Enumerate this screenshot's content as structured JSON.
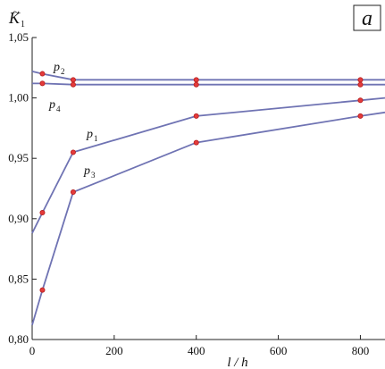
{
  "chart_data": {
    "type": "line",
    "panel_label": "a",
    "ylabel_main": "K",
    "ylabel_tilde": "~",
    "ylabel_sub": "1",
    "xlabel": "l / h",
    "xlim": [
      0,
      860
    ],
    "ylim": [
      0.8,
      1.05
    ],
    "xticks": [
      0,
      200,
      400,
      600,
      800
    ],
    "xtick_labels": [
      "0",
      "200",
      "400",
      "600",
      "800"
    ],
    "yticks": [
      0.8,
      0.85,
      0.9,
      0.95,
      1.0,
      1.05
    ],
    "ytick_labels": [
      "0,80",
      "0,85",
      "0,90",
      "0,95",
      "1,00",
      "1,05"
    ],
    "grid": false,
    "series": [
      {
        "name_base": "p",
        "name_sub": "2",
        "x": [
          0,
          25,
          100,
          400,
          800,
          860
        ],
        "y": [
          1.022,
          1.02,
          1.015,
          1.015,
          1.015,
          1.015
        ],
        "marker_x": [
          25,
          100,
          400,
          800
        ],
        "color": "#6f73b3",
        "marker_color": "#e43b3b"
      },
      {
        "name_base": "p",
        "name_sub": "4",
        "x": [
          0,
          25,
          100,
          400,
          800,
          860
        ],
        "y": [
          1.012,
          1.012,
          1.011,
          1.011,
          1.011,
          1.011
        ],
        "marker_x": [
          25,
          100,
          400,
          800
        ],
        "color": "#6f73b3",
        "marker_color": "#e43b3b"
      },
      {
        "name_base": "p",
        "name_sub": "1",
        "x": [
          0,
          25,
          100,
          400,
          800,
          860
        ],
        "y": [
          0.888,
          0.905,
          0.955,
          0.985,
          0.998,
          1.0
        ],
        "marker_x": [
          25,
          100,
          400,
          800
        ],
        "color": "#6f73b3",
        "marker_color": "#e43b3b"
      },
      {
        "name_base": "p",
        "name_sub": "3",
        "x": [
          0,
          25,
          100,
          400,
          800,
          860
        ],
        "y": [
          0.812,
          0.841,
          0.922,
          0.963,
          0.985,
          0.988
        ],
        "marker_x": [
          25,
          100,
          400,
          800
        ],
        "color": "#6f73b3",
        "marker_color": "#e43b3b"
      }
    ]
  }
}
